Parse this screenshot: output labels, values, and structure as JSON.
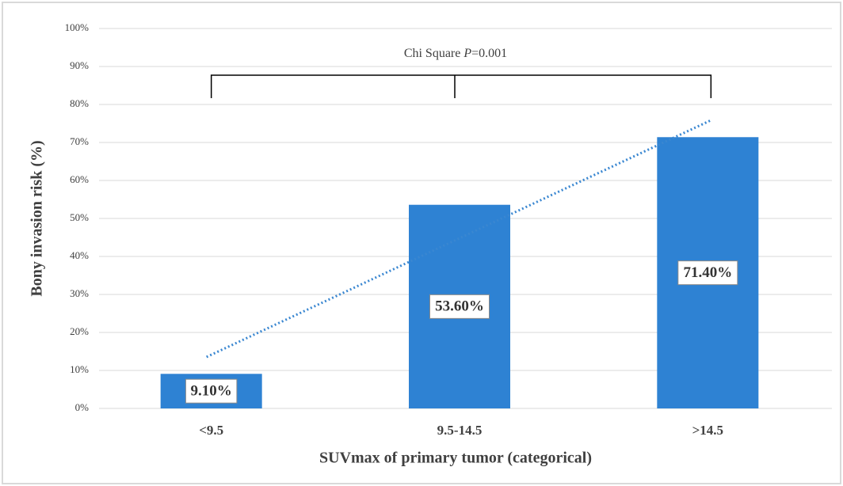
{
  "chart_data": {
    "type": "bar",
    "annotation": [
      "Chi Square ",
      "P",
      "=0.001"
    ],
    "x_label": "SUVmax of primary tumor (categorical)",
    "y_label": "Bony invasion risk (%)",
    "categories": [
      "<9.5",
      "9.5-14.5",
      ">14.5"
    ],
    "values": [
      9.1,
      53.6,
      71.4
    ],
    "value_labels": [
      "9.10%",
      "53.60%",
      "71.40%"
    ],
    "color": "#2e82d3",
    "trendline": "linear",
    "trendline_color": "#3a87d1",
    "ylim": [
      0,
      100
    ],
    "yticks": [
      {
        "value": 0,
        "label": "0%"
      },
      {
        "value": 10,
        "label": "10%"
      },
      {
        "value": 20,
        "label": "20%"
      },
      {
        "value": 30,
        "label": "30%"
      },
      {
        "value": 40,
        "label": "40%"
      },
      {
        "value": 50,
        "label": "50%"
      },
      {
        "value": 60,
        "label": "60%"
      },
      {
        "value": 70,
        "label": "70%"
      },
      {
        "value": 80,
        "label": "80%"
      },
      {
        "value": 90,
        "label": "90%"
      },
      {
        "value": 100,
        "label": "100%"
      }
    ],
    "grid": true
  }
}
